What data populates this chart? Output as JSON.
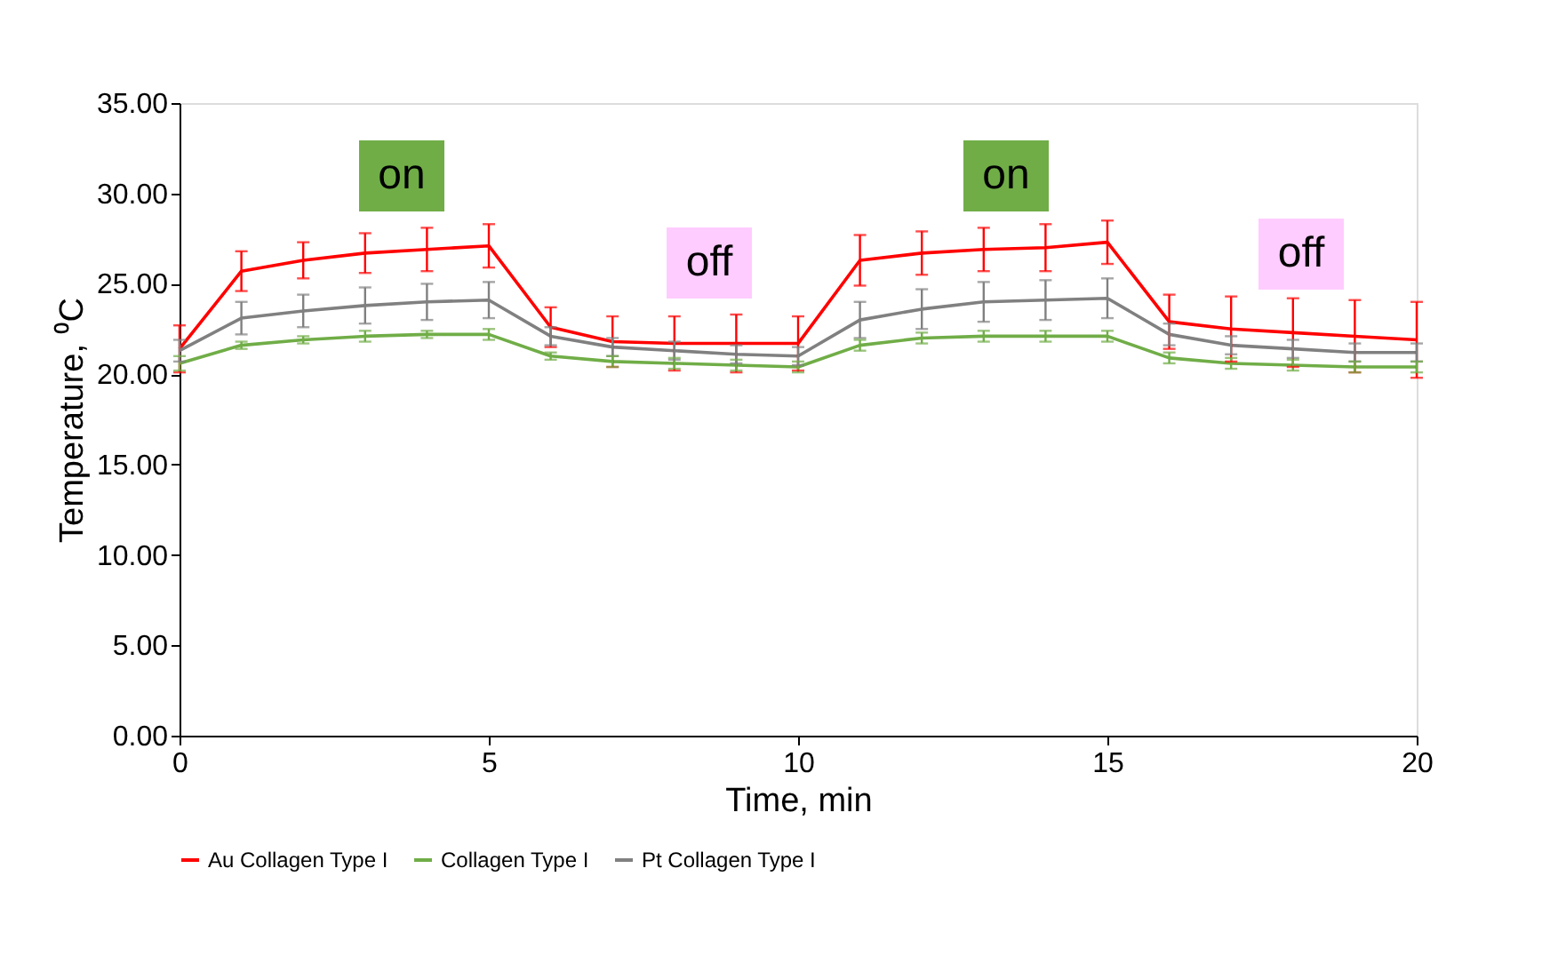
{
  "chart_data": {
    "type": "line",
    "xlabel": "Time, min",
    "ylabel": "Temperature, ⁰C",
    "x": [
      0,
      1,
      2,
      3,
      4,
      5,
      6,
      7,
      8,
      9,
      10,
      11,
      12,
      13,
      14,
      15,
      16,
      17,
      18,
      19,
      20
    ],
    "series": [
      {
        "name": "Au Collagen Type I",
        "color": "#ff0000",
        "values": [
          21.4,
          25.7,
          26.3,
          26.7,
          26.9,
          27.1,
          22.6,
          21.8,
          21.7,
          21.7,
          21.7,
          26.3,
          26.7,
          26.9,
          27.0,
          27.3,
          22.9,
          22.5,
          22.3,
          22.1,
          21.9
        ],
        "errors": [
          1.3,
          1.1,
          1.0,
          1.1,
          1.2,
          1.2,
          1.1,
          1.4,
          1.5,
          1.6,
          1.5,
          1.4,
          1.2,
          1.2,
          1.3,
          1.2,
          1.5,
          1.8,
          1.9,
          2.0,
          2.1
        ]
      },
      {
        "name": "Collagen Type I",
        "color": "#70ad47",
        "values": [
          20.6,
          21.6,
          21.9,
          22.1,
          22.2,
          22.2,
          21.0,
          20.7,
          20.6,
          20.5,
          20.4,
          21.6,
          22.0,
          22.1,
          22.1,
          22.1,
          20.9,
          20.6,
          20.5,
          20.4,
          20.4
        ],
        "errors": [
          0.4,
          0.2,
          0.2,
          0.3,
          0.2,
          0.3,
          0.2,
          0.3,
          0.3,
          0.3,
          0.3,
          0.3,
          0.3,
          0.3,
          0.3,
          0.3,
          0.3,
          0.3,
          0.3,
          0.3,
          0.3
        ]
      },
      {
        "name": "Pt Collagen Type I",
        "color": "#808080",
        "values": [
          21.3,
          23.1,
          23.5,
          23.8,
          24.0,
          24.1,
          22.1,
          21.5,
          21.3,
          21.1,
          21.0,
          23.0,
          23.6,
          24.0,
          24.1,
          24.2,
          22.2,
          21.6,
          21.4,
          21.2,
          21.2
        ],
        "errors": [
          0.6,
          0.9,
          0.9,
          1.0,
          1.0,
          1.0,
          0.5,
          0.5,
          0.5,
          0.5,
          0.5,
          1.0,
          1.1,
          1.1,
          1.1,
          1.1,
          0.6,
          0.5,
          0.5,
          0.5,
          0.5
        ]
      }
    ],
    "xlim": [
      0,
      20
    ],
    "xticks": [
      0,
      5,
      10,
      15,
      20
    ],
    "ylim": [
      0,
      35
    ],
    "yticks": [
      {
        "value": 0,
        "label": "0.00"
      },
      {
        "value": 5,
        "label": "5.00"
      },
      {
        "value": 10,
        "label": "10.00"
      },
      {
        "value": 15,
        "label": "15.00"
      },
      {
        "value": 20,
        "label": "20.00"
      },
      {
        "value": 25,
        "label": "25.00"
      },
      {
        "value": 30,
        "label": "30.00"
      },
      {
        "value": 35,
        "label": "35.00"
      }
    ],
    "annotations": [
      "on",
      "off",
      "on",
      "off"
    ],
    "grid": false,
    "legend": "bottom",
    "marker": "none",
    "line_style": "solid"
  }
}
